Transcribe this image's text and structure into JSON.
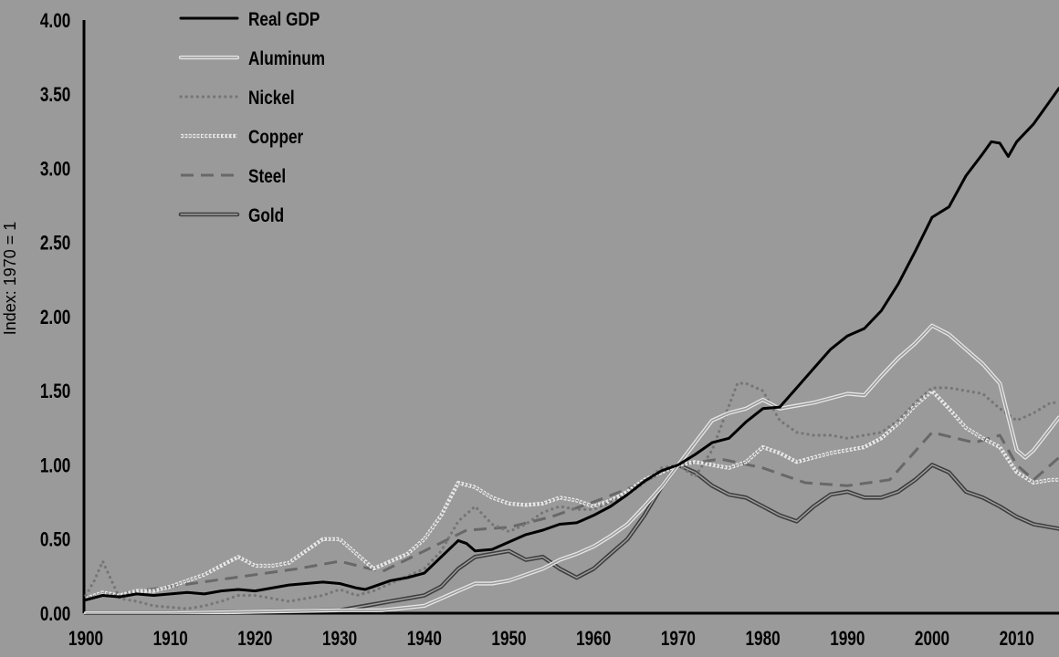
{
  "chart_data": {
    "type": "line",
    "title": "",
    "xlabel": "",
    "ylabel": "Index: 1970 = 1",
    "xlim": [
      1900,
      2015
    ],
    "ylim": [
      0,
      4
    ],
    "grid": false,
    "legend_position": "top-left",
    "x_ticks": [
      "1900",
      "1910",
      "1920",
      "1930",
      "1940",
      "1950",
      "1960",
      "1970",
      "1980",
      "1990",
      "2000",
      "2010"
    ],
    "y_ticks": [
      "0.00",
      "0.50",
      "1.00",
      "1.50",
      "2.00",
      "2.50",
      "3.00",
      "3.50",
      "4.00"
    ],
    "series": [
      {
        "name": "Real GDP",
        "style": "solid-black",
        "color": "#000000",
        "x": [
          1900,
          1902,
          1904,
          1906,
          1908,
          1910,
          1912,
          1914,
          1916,
          1918,
          1920,
          1922,
          1924,
          1926,
          1928,
          1930,
          1932,
          1933,
          1934,
          1936,
          1938,
          1940,
          1942,
          1944,
          1945,
          1946,
          1948,
          1950,
          1952,
          1954,
          1956,
          1958,
          1960,
          1962,
          1964,
          1966,
          1968,
          1970,
          1972,
          1974,
          1976,
          1978,
          1980,
          1982,
          1984,
          1986,
          1988,
          1990,
          1992,
          1994,
          1996,
          1998,
          2000,
          2002,
          2004,
          2006,
          2007,
          2008,
          2009,
          2010,
          2012,
          2015
        ],
        "values": [
          0.09,
          0.12,
          0.11,
          0.13,
          0.12,
          0.13,
          0.14,
          0.13,
          0.15,
          0.16,
          0.15,
          0.17,
          0.19,
          0.2,
          0.21,
          0.2,
          0.17,
          0.16,
          0.18,
          0.22,
          0.24,
          0.27,
          0.38,
          0.49,
          0.47,
          0.42,
          0.43,
          0.48,
          0.53,
          0.56,
          0.6,
          0.61,
          0.66,
          0.72,
          0.8,
          0.89,
          0.96,
          1.0,
          1.07,
          1.15,
          1.18,
          1.29,
          1.38,
          1.39,
          1.52,
          1.65,
          1.78,
          1.87,
          1.92,
          2.04,
          2.22,
          2.44,
          2.67,
          2.74,
          2.95,
          3.1,
          3.18,
          3.17,
          3.08,
          3.18,
          3.3,
          3.54
        ]
      },
      {
        "name": "Aluminum",
        "style": "double-outline",
        "color": "#e8e8e8",
        "x": [
          1900,
          1910,
          1920,
          1930,
          1935,
          1940,
          1942,
          1944,
          1946,
          1948,
          1950,
          1952,
          1954,
          1956,
          1958,
          1960,
          1962,
          1964,
          1966,
          1968,
          1970,
          1972,
          1974,
          1976,
          1978,
          1980,
          1982,
          1984,
          1986,
          1988,
          1990,
          1992,
          1994,
          1996,
          1998,
          2000,
          2002,
          2004,
          2006,
          2008,
          2010,
          2011,
          2012,
          2015
        ],
        "values": [
          0.0,
          0.0,
          0.01,
          0.02,
          0.02,
          0.05,
          0.1,
          0.15,
          0.2,
          0.2,
          0.22,
          0.26,
          0.3,
          0.36,
          0.4,
          0.45,
          0.52,
          0.6,
          0.72,
          0.85,
          1.0,
          1.15,
          1.3,
          1.35,
          1.38,
          1.44,
          1.38,
          1.4,
          1.42,
          1.45,
          1.48,
          1.47,
          1.6,
          1.72,
          1.82,
          1.94,
          1.88,
          1.78,
          1.68,
          1.55,
          1.1,
          1.05,
          1.1,
          1.32
        ]
      },
      {
        "name": "Nickel",
        "style": "dotted",
        "color": "#7a7a7a",
        "x": [
          1900,
          1901,
          1902,
          1904,
          1906,
          1908,
          1910,
          1912,
          1914,
          1916,
          1918,
          1920,
          1922,
          1924,
          1926,
          1928,
          1930,
          1932,
          1934,
          1936,
          1938,
          1940,
          1942,
          1944,
          1946,
          1948,
          1950,
          1952,
          1954,
          1956,
          1958,
          1960,
          1962,
          1964,
          1966,
          1968,
          1970,
          1972,
          1974,
          1976,
          1977,
          1978,
          1980,
          1982,
          1984,
          1986,
          1988,
          1990,
          1992,
          1994,
          1996,
          1998,
          2000,
          2002,
          2004,
          2006,
          2008,
          2010,
          2012,
          2014,
          2015
        ],
        "values": [
          0.12,
          0.22,
          0.35,
          0.1,
          0.08,
          0.05,
          0.04,
          0.03,
          0.05,
          0.08,
          0.12,
          0.12,
          0.1,
          0.08,
          0.1,
          0.12,
          0.16,
          0.12,
          0.15,
          0.2,
          0.25,
          0.3,
          0.42,
          0.62,
          0.72,
          0.6,
          0.55,
          0.6,
          0.68,
          0.72,
          0.7,
          0.7,
          0.75,
          0.8,
          0.88,
          0.98,
          1.0,
          0.92,
          1.1,
          1.4,
          1.55,
          1.55,
          1.5,
          1.3,
          1.22,
          1.2,
          1.2,
          1.18,
          1.2,
          1.22,
          1.3,
          1.42,
          1.52,
          1.52,
          1.5,
          1.48,
          1.38,
          1.3,
          1.35,
          1.42,
          1.42
        ]
      },
      {
        "name": "Copper",
        "style": "diamond-chain",
        "color": "#e8e8e8",
        "x": [
          1900,
          1902,
          1904,
          1906,
          1908,
          1910,
          1912,
          1914,
          1916,
          1918,
          1920,
          1922,
          1924,
          1926,
          1928,
          1930,
          1932,
          1934,
          1936,
          1938,
          1940,
          1942,
          1944,
          1946,
          1948,
          1950,
          1952,
          1954,
          1956,
          1958,
          1960,
          1962,
          1964,
          1966,
          1968,
          1970,
          1972,
          1974,
          1976,
          1978,
          1980,
          1982,
          1984,
          1986,
          1988,
          1990,
          1992,
          1994,
          1996,
          1998,
          2000,
          2002,
          2004,
          2006,
          2008,
          2010,
          2012,
          2014,
          2015
        ],
        "values": [
          0.1,
          0.14,
          0.12,
          0.15,
          0.15,
          0.18,
          0.22,
          0.26,
          0.32,
          0.38,
          0.32,
          0.32,
          0.34,
          0.42,
          0.5,
          0.5,
          0.4,
          0.3,
          0.35,
          0.4,
          0.5,
          0.66,
          0.88,
          0.85,
          0.78,
          0.74,
          0.73,
          0.74,
          0.78,
          0.76,
          0.72,
          0.76,
          0.82,
          0.9,
          0.95,
          1.0,
          1.02,
          1.0,
          0.98,
          1.02,
          1.12,
          1.08,
          1.02,
          1.05,
          1.08,
          1.1,
          1.12,
          1.18,
          1.28,
          1.4,
          1.5,
          1.38,
          1.25,
          1.18,
          1.12,
          0.95,
          0.88,
          0.9,
          0.9
        ]
      },
      {
        "name": "Steel",
        "style": "dashed",
        "color": "#6c6c6c",
        "x": [
          1900,
          1905,
          1910,
          1915,
          1920,
          1925,
          1930,
          1935,
          1940,
          1945,
          1950,
          1955,
          1960,
          1965,
          1970,
          1975,
          1980,
          1985,
          1990,
          1995,
          2000,
          2005,
          2008,
          2010,
          2012,
          2015
        ],
        "values": [
          0.1,
          0.14,
          0.18,
          0.22,
          0.26,
          0.3,
          0.35,
          0.28,
          0.42,
          0.56,
          0.58,
          0.65,
          0.75,
          0.86,
          1.0,
          1.04,
          0.98,
          0.88,
          0.86,
          0.9,
          1.22,
          1.15,
          1.2,
          1.0,
          0.9,
          1.05
        ]
      },
      {
        "name": "Gold",
        "style": "double-dark",
        "color": "#4a4a4a",
        "x": [
          1900,
          1910,
          1920,
          1930,
          1934,
          1936,
          1938,
          1940,
          1942,
          1944,
          1946,
          1948,
          1950,
          1952,
          1954,
          1956,
          1958,
          1960,
          1962,
          1964,
          1966,
          1968,
          1970,
          1972,
          1974,
          1976,
          1978,
          1980,
          1982,
          1984,
          1986,
          1988,
          1990,
          1992,
          1994,
          1996,
          1998,
          2000,
          2002,
          2004,
          2006,
          2008,
          2010,
          2012,
          2015
        ],
        "values": [
          0.0,
          0.0,
          0.01,
          0.02,
          0.06,
          0.08,
          0.1,
          0.12,
          0.18,
          0.3,
          0.38,
          0.4,
          0.42,
          0.36,
          0.38,
          0.3,
          0.24,
          0.3,
          0.4,
          0.5,
          0.66,
          0.85,
          1.0,
          0.95,
          0.86,
          0.8,
          0.78,
          0.72,
          0.66,
          0.62,
          0.72,
          0.8,
          0.82,
          0.78,
          0.78,
          0.82,
          0.9,
          1.0,
          0.95,
          0.82,
          0.78,
          0.72,
          0.65,
          0.6,
          0.57
        ]
      }
    ]
  }
}
